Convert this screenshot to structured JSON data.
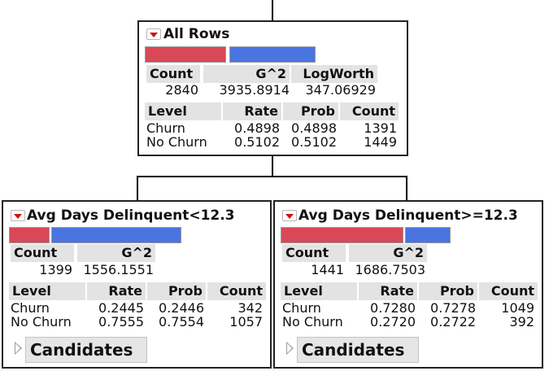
{
  "colors": {
    "churn_bar": "#d94857",
    "no_churn_bar": "#4a74e0",
    "header_bg": "#e3e3e3"
  },
  "root": {
    "title": "All Rows",
    "split_share": {
      "churn": 0.4898,
      "no_churn": 0.5102
    },
    "summary_headers": [
      "Count",
      "G^2",
      "LogWorth"
    ],
    "summary_values": [
      "2840",
      "3935.8914",
      "347.06929"
    ],
    "level_headers": [
      "Level",
      "Rate",
      "Prob",
      "Count"
    ],
    "levels": [
      {
        "level": "Churn",
        "rate": "0.4898",
        "prob": "0.4898",
        "count": "1391"
      },
      {
        "level": "No Churn",
        "rate": "0.5102",
        "prob": "0.5102",
        "count": "1449"
      }
    ]
  },
  "left": {
    "title": "Avg Days Delinquent<12.3",
    "split_share": {
      "churn": 0.2445,
      "no_churn": 0.7555
    },
    "summary_headers": [
      "Count",
      "G^2"
    ],
    "summary_values": [
      "1399",
      "1556.1551"
    ],
    "level_headers": [
      "Level",
      "Rate",
      "Prob",
      "Count"
    ],
    "levels": [
      {
        "level": "Churn",
        "rate": "0.2445",
        "prob": "0.2446",
        "count": "342"
      },
      {
        "level": "No Churn",
        "rate": "0.7555",
        "prob": "0.7554",
        "count": "1057"
      }
    ],
    "candidates_label": "Candidates"
  },
  "right": {
    "title": "Avg Days Delinquent>=12.3",
    "split_share": {
      "churn": 0.728,
      "no_churn": 0.272
    },
    "summary_headers": [
      "Count",
      "G^2"
    ],
    "summary_values": [
      "1441",
      "1686.7503"
    ],
    "level_headers": [
      "Level",
      "Rate",
      "Prob",
      "Count"
    ],
    "levels": [
      {
        "level": "Churn",
        "rate": "0.7280",
        "prob": "0.7278",
        "count": "1049"
      },
      {
        "level": "No Churn",
        "rate": "0.2720",
        "prob": "0.2722",
        "count": "392"
      }
    ],
    "candidates_label": "Candidates"
  }
}
